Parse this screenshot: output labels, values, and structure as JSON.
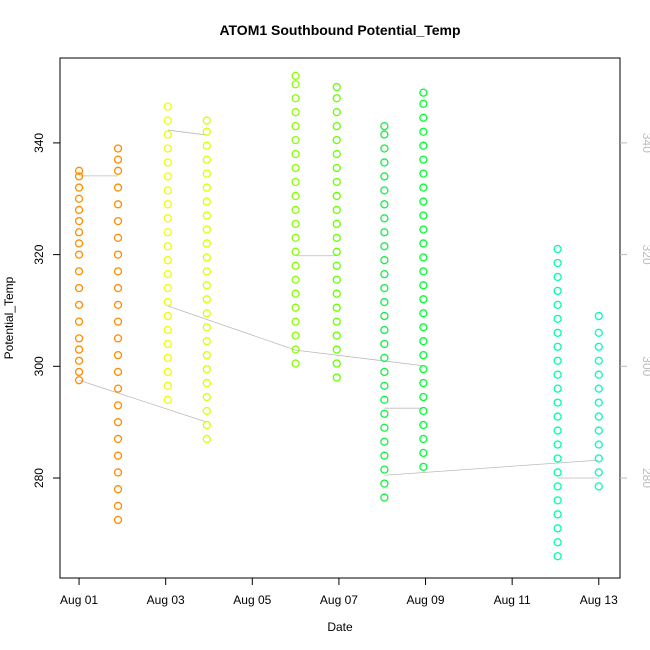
{
  "chart_data": {
    "type": "scatter",
    "title": "ATOM1 Southbound Potential_Temp",
    "xlabel": "Date",
    "ylabel": "Potential_Temp",
    "xlim": [
      0.56,
      13.49
    ],
    "ylim": [
      262.1,
      355.2
    ],
    "y2lim": [
      262.1,
      355.2
    ],
    "xticks": [
      {
        "value": 1,
        "label": "Aug 01"
      },
      {
        "value": 3,
        "label": "Aug 03"
      },
      {
        "value": 5,
        "label": "Aug 05"
      },
      {
        "value": 7,
        "label": "Aug 07"
      },
      {
        "value": 9,
        "label": "Aug 09"
      },
      {
        "value": 11,
        "label": "Aug 11"
      },
      {
        "value": 13,
        "label": "Aug 13"
      }
    ],
    "yticks": [
      280,
      300,
      320,
      340
    ],
    "y2ticks": [
      280,
      300,
      320,
      340
    ],
    "y2_color": "#bbbbbb",
    "connector": {
      "color": "#bbbbbb",
      "x": [
        1,
        1.9,
        null,
        1,
        3.95,
        null,
        3.05,
        3.95,
        null,
        3.05,
        6.0,
        8.95,
        null,
        6.0,
        6.95,
        null,
        8.05,
        8.95,
        null,
        8.05,
        13.0,
        null,
        12.05,
        13.0
      ],
      "values": [
        334.1,
        334.1,
        null,
        297.5,
        290,
        null,
        342.3,
        341.4,
        null,
        310.8,
        302.9,
        300.1,
        null,
        319.8,
        319.8,
        null,
        292.5,
        292.5,
        null,
        280.5,
        283.2,
        null,
        280,
        280
      ]
    },
    "series": [
      {
        "color": "#ff8c00",
        "x": 1.0,
        "values": [
          297.5,
          299,
          301,
          303,
          305,
          308,
          311,
          314,
          317,
          320,
          322,
          324,
          326,
          328,
          330,
          332,
          334,
          335
        ]
      },
      {
        "color": "#ff8c00",
        "x": 1.9,
        "values": [
          272.5,
          275,
          278,
          281,
          284,
          287,
          290,
          293,
          296,
          299,
          302,
          305,
          308,
          311,
          314,
          317,
          320,
          323,
          326,
          329,
          332,
          335,
          337,
          339
        ]
      },
      {
        "color": "#eeff00",
        "x": 3.05,
        "values": [
          294,
          296.5,
          299,
          301.5,
          304,
          306.5,
          309,
          311.5,
          314,
          316.5,
          319,
          321.5,
          324,
          326.5,
          329,
          331.5,
          334,
          336.5,
          339,
          341.5,
          344,
          346.5
        ]
      },
      {
        "color": "#ddff00",
        "x": 3.95,
        "values": [
          287,
          289.5,
          292,
          294.5,
          297,
          299.5,
          302,
          304.5,
          307,
          309.5,
          312,
          314.5,
          317,
          319.5,
          322,
          324.5,
          327,
          329.5,
          332,
          334.5,
          337,
          339.5,
          342,
          344
        ]
      },
      {
        "color": "#88ff00",
        "x": 6.0,
        "values": [
          300.5,
          303,
          305.5,
          308,
          310.5,
          313,
          315.5,
          318,
          320.5,
          323,
          325.5,
          328,
          330.5,
          333,
          335.5,
          338,
          340.5,
          343,
          345.5,
          348,
          350.5,
          352
        ]
      },
      {
        "color": "#66ff00",
        "x": 6.95,
        "values": [
          298,
          300.5,
          303,
          305.5,
          308,
          310.5,
          313,
          315.5,
          318,
          320.5,
          323,
          325.5,
          328,
          330.5,
          333,
          335.5,
          338,
          340.5,
          343,
          345.5,
          348,
          350
        ]
      },
      {
        "color": "#11f044",
        "x": 8.05,
        "values": [
          276.5,
          279,
          281.5,
          284,
          286.5,
          289,
          291.5,
          294,
          296.5,
          299,
          301.5,
          304,
          306.5,
          309,
          311.5,
          314,
          316.5,
          319,
          321.5,
          324,
          326.5,
          329,
          331.5,
          334,
          336.5,
          339,
          341.5,
          343
        ]
      },
      {
        "color": "#00ff33",
        "x": 8.95,
        "values": [
          282,
          284.5,
          287,
          289.5,
          292,
          294.5,
          297,
          299.5,
          302,
          304.5,
          307,
          309.5,
          312,
          314.5,
          317,
          319.5,
          322,
          324.5,
          327,
          329.5,
          332,
          334.5,
          337,
          339.5,
          342,
          344.5,
          347,
          349
        ]
      },
      {
        "color": "#00ffaa",
        "x": 12.05,
        "values": [
          266,
          268.5,
          271,
          273.5,
          276,
          278.5,
          281,
          283.5,
          286,
          288.5,
          291,
          293.5,
          296,
          298.5,
          301,
          303.5,
          306,
          308.5,
          311,
          313.5,
          316,
          318.5,
          321
        ]
      },
      {
        "color": "#00ffbb",
        "x": 13.0,
        "values": [
          278.5,
          281,
          283.5,
          286,
          288.5,
          291,
          293.5,
          296,
          298.5,
          301,
          303.5,
          306,
          309
        ]
      }
    ]
  }
}
